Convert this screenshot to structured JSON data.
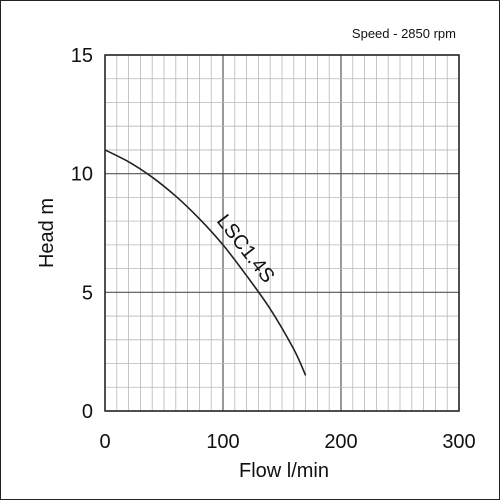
{
  "chart_data": {
    "type": "line",
    "annotation": "Speed - 2850 rpm",
    "xlabel": "Flow l/min",
    "ylabel": "Head m",
    "xlim": [
      0,
      300
    ],
    "ylim": [
      0,
      15
    ],
    "x_ticks": [
      0,
      100,
      200,
      300
    ],
    "y_ticks": [
      0,
      5,
      10,
      15
    ],
    "grid": true,
    "series": [
      {
        "name": "LSC1.4S",
        "color": "#222222",
        "x": [
          0,
          20,
          40,
          60,
          80,
          100,
          120,
          140,
          160,
          170
        ],
        "y": [
          11.0,
          10.5,
          9.85,
          9.05,
          8.1,
          7.0,
          5.7,
          4.3,
          2.6,
          1.5
        ]
      }
    ]
  }
}
